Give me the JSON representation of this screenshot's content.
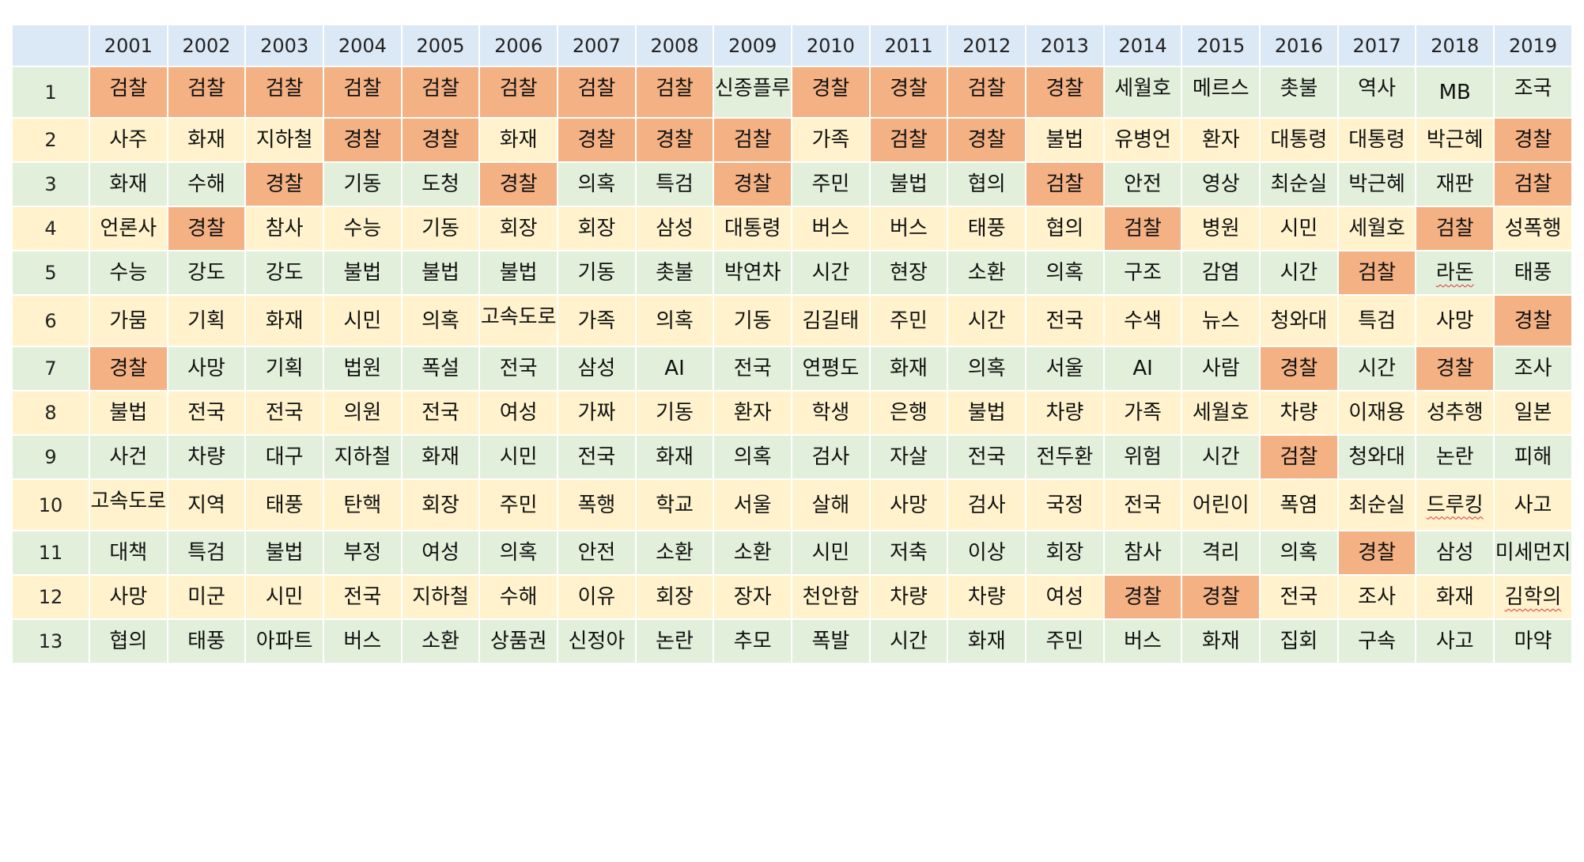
{
  "colors": {
    "green": "#e2efda",
    "yellow": "#fff2cc",
    "orange": "#f4b183",
    "header": "#dbe8f5"
  },
  "years": [
    "2001",
    "2002",
    "2003",
    "2004",
    "2005",
    "2006",
    "2007",
    "2008",
    "2009",
    "2010",
    "2011",
    "2012",
    "2013",
    "2014",
    "2015",
    "2016",
    "2017",
    "2018",
    "2019"
  ],
  "rows": [
    {
      "rank": "1",
      "cells": [
        "검찰",
        "검찰",
        "검찰",
        "검찰",
        "검찰",
        "검찰",
        "검찰",
        "검찰",
        "신종플루",
        "경찰",
        "경찰",
        "검찰",
        "경찰",
        "세월호",
        "메르스",
        "촛불",
        "역사",
        "MB",
        "조국"
      ]
    },
    {
      "rank": "2",
      "cells": [
        "사주",
        "화재",
        "지하철",
        "경찰",
        "경찰",
        "화재",
        "경찰",
        "경찰",
        "검찰",
        "가족",
        "검찰",
        "경찰",
        "불법",
        "유병언",
        "환자",
        "대통령",
        "대통령",
        "박근혜",
        "경찰"
      ]
    },
    {
      "rank": "3",
      "cells": [
        "화재",
        "수해",
        "경찰",
        "기동",
        "도청",
        "경찰",
        "의혹",
        "특검",
        "경찰",
        "주민",
        "불법",
        "협의",
        "검찰",
        "안전",
        "영상",
        "최순실",
        "박근혜",
        "재판",
        "검찰"
      ]
    },
    {
      "rank": "4",
      "cells": [
        "언론사",
        "경찰",
        "참사",
        "수능",
        "기동",
        "회장",
        "회장",
        "삼성",
        "대통령",
        "버스",
        "버스",
        "태풍",
        "협의",
        "검찰",
        "병원",
        "시민",
        "세월호",
        "검찰",
        "성폭행"
      ]
    },
    {
      "rank": "5",
      "cells": [
        "수능",
        "강도",
        "강도",
        "불법",
        "불법",
        "불법",
        "기동",
        "촛불",
        "박연차",
        "시간",
        "현장",
        "소환",
        "의혹",
        "구조",
        "감염",
        "시간",
        "검찰",
        "라돈",
        "태풍"
      ]
    },
    {
      "rank": "6",
      "cells": [
        "가뭄",
        "기획",
        "화재",
        "시민",
        "의혹",
        "고속도로",
        "가족",
        "의혹",
        "기동",
        "김길태",
        "주민",
        "시간",
        "전국",
        "수색",
        "뉴스",
        "청와대",
        "특검",
        "사망",
        "경찰"
      ]
    },
    {
      "rank": "7",
      "cells": [
        "경찰",
        "사망",
        "기획",
        "법원",
        "폭설",
        "전국",
        "삼성",
        "AI",
        "전국",
        "연평도",
        "화재",
        "의혹",
        "서울",
        "AI",
        "사람",
        "경찰",
        "시간",
        "경찰",
        "조사"
      ]
    },
    {
      "rank": "8",
      "cells": [
        "불법",
        "전국",
        "전국",
        "의원",
        "전국",
        "여성",
        "가짜",
        "기동",
        "환자",
        "학생",
        "은행",
        "불법",
        "차량",
        "가족",
        "세월호",
        "차량",
        "이재용",
        "성추행",
        "일본"
      ]
    },
    {
      "rank": "9",
      "cells": [
        "사건",
        "차량",
        "대구",
        "지하철",
        "화재",
        "시민",
        "전국",
        "화재",
        "의혹",
        "검사",
        "자살",
        "전국",
        "전두환",
        "위험",
        "시간",
        "검찰",
        "청와대",
        "논란",
        "피해"
      ]
    },
    {
      "rank": "10",
      "cells": [
        "고속도로",
        "지역",
        "태풍",
        "탄핵",
        "회장",
        "주민",
        "폭행",
        "학교",
        "서울",
        "살해",
        "사망",
        "검사",
        "국정",
        "전국",
        "어린이",
        "폭염",
        "최순실",
        "드루킹",
        "사고"
      ]
    },
    {
      "rank": "11",
      "cells": [
        "대책",
        "특검",
        "불법",
        "부정",
        "여성",
        "의혹",
        "안전",
        "소환",
        "소환",
        "시민",
        "저축",
        "이상",
        "회장",
        "참사",
        "격리",
        "의혹",
        "경찰",
        "삼성",
        "미세먼지"
      ]
    },
    {
      "rank": "12",
      "cells": [
        "사망",
        "미군",
        "시민",
        "전국",
        "지하철",
        "수해",
        "이유",
        "회장",
        "장자",
        "천안함",
        "차량",
        "차량",
        "여성",
        "경찰",
        "경찰",
        "전국",
        "조사",
        "화재",
        "김학의"
      ]
    },
    {
      "rank": "13",
      "cells": [
        "협의",
        "태풍",
        "아파트",
        "버스",
        "소환",
        "상품권",
        "신정아",
        "논란",
        "추모",
        "폭발",
        "시간",
        "화재",
        "주민",
        "버스",
        "화재",
        "집회",
        "구속",
        "사고",
        "마약"
      ]
    }
  ]
}
